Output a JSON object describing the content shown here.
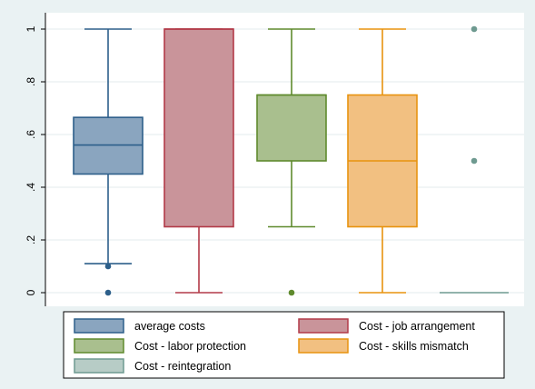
{
  "chart_data": {
    "type": "box",
    "ylim": [
      0,
      1
    ],
    "yticks": [
      {
        "value": 0,
        "label": "0"
      },
      {
        "value": 0.2,
        "label": ".2"
      },
      {
        "value": 0.4,
        "label": ".4"
      },
      {
        "value": 0.6,
        "label": ".6"
      },
      {
        "value": 0.8,
        "label": ".8"
      },
      {
        "value": 1,
        "label": "1"
      }
    ],
    "grid": true,
    "legend_position": "bottom",
    "series": [
      {
        "name": "average costs",
        "color": "#2d5f8a",
        "fill": "#8aa5bf",
        "whisker_low": 0.11,
        "q1": 0.45,
        "median": 0.56,
        "q3": 0.665,
        "whisker_high": 1.0,
        "outliers": [
          0.1,
          0.0
        ]
      },
      {
        "name": "Cost - job arrangement",
        "color": "#b23a48",
        "fill": "#c9949a",
        "whisker_low": 0.0,
        "q1": 0.25,
        "median": 1.0,
        "q3": 1.0,
        "whisker_high": 1.0,
        "outliers": []
      },
      {
        "name": "Cost - labor protection",
        "color": "#5f8a2d",
        "fill": "#a9bf8e",
        "whisker_low": 0.25,
        "q1": 0.5,
        "median": 0.75,
        "q3": 0.75,
        "whisker_high": 1.0,
        "outliers": [
          0.0
        ]
      },
      {
        "name": "Cost - skills mismatch",
        "color": "#e8930f",
        "fill": "#f2c081",
        "whisker_low": 0.0,
        "q1": 0.25,
        "median": 0.5,
        "q3": 0.75,
        "whisker_high": 1.0,
        "outliers": []
      },
      {
        "name": "Cost - reintegration",
        "color": "#6e9a90",
        "fill": "#b7ccc6",
        "whisker_low": 0.0,
        "q1": 0.0,
        "median": 0.0,
        "q3": 0.0,
        "whisker_high": 0.0,
        "outliers": [
          1.0,
          0.5
        ]
      }
    ]
  }
}
